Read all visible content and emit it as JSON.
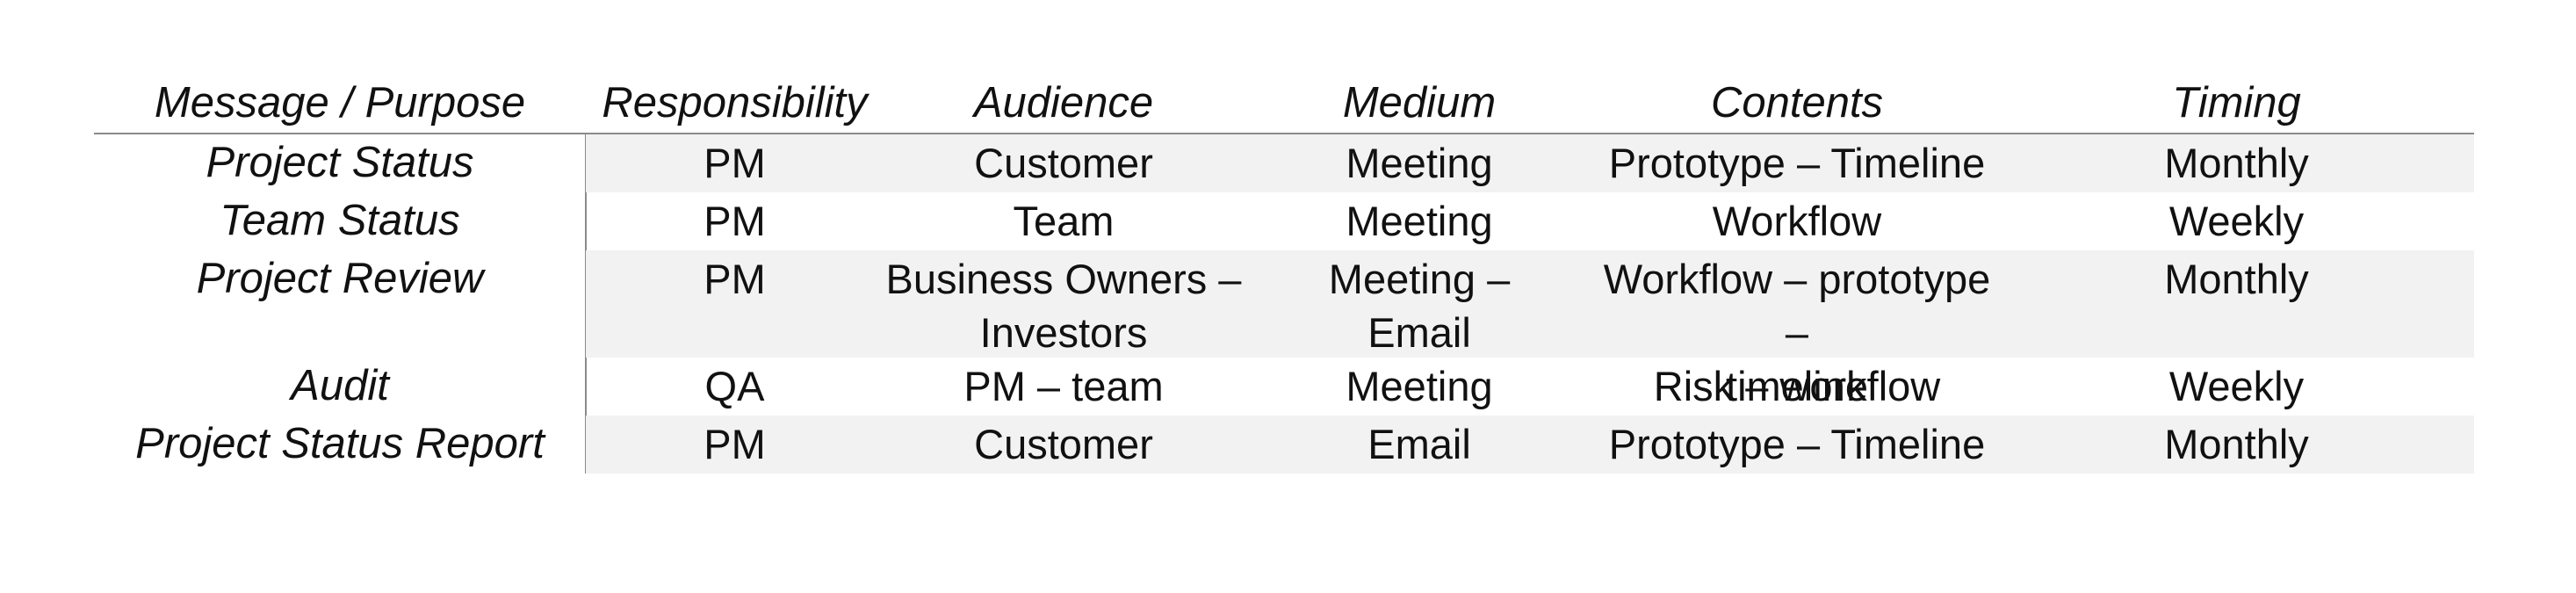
{
  "table": {
    "headers": [
      "Message / Purpose",
      "Responsibility",
      "Audience",
      "Medium",
      "Contents",
      "Timing"
    ],
    "rows": [
      {
        "purpose": "Project Status",
        "responsibility": "PM",
        "audience": "Customer",
        "medium": "Meeting",
        "contents": "Prototype – Timeline",
        "timing": "Monthly"
      },
      {
        "purpose": "Team Status",
        "responsibility": "PM",
        "audience": "Team",
        "medium": "Meeting",
        "contents": "Workflow",
        "timing": "Weekly"
      },
      {
        "purpose": "Project Review",
        "responsibility": "PM",
        "audience_lines": [
          "Business Owners –",
          "Investors"
        ],
        "medium_lines": [
          "Meeting –",
          "Email"
        ],
        "contents_lines": [
          "Workflow – prototype –",
          "timeline"
        ],
        "timing": "Monthly"
      },
      {
        "purpose": "Audit",
        "responsibility": "QA",
        "audience": "PM – team",
        "medium": "Meeting",
        "contents": "Risk – workflow",
        "timing": "Weekly"
      },
      {
        "purpose": "Project Status Report",
        "responsibility": "PM",
        "audience": "Customer",
        "medium": "Email",
        "contents": "Prototype – Timeline",
        "timing": "Monthly"
      }
    ]
  }
}
